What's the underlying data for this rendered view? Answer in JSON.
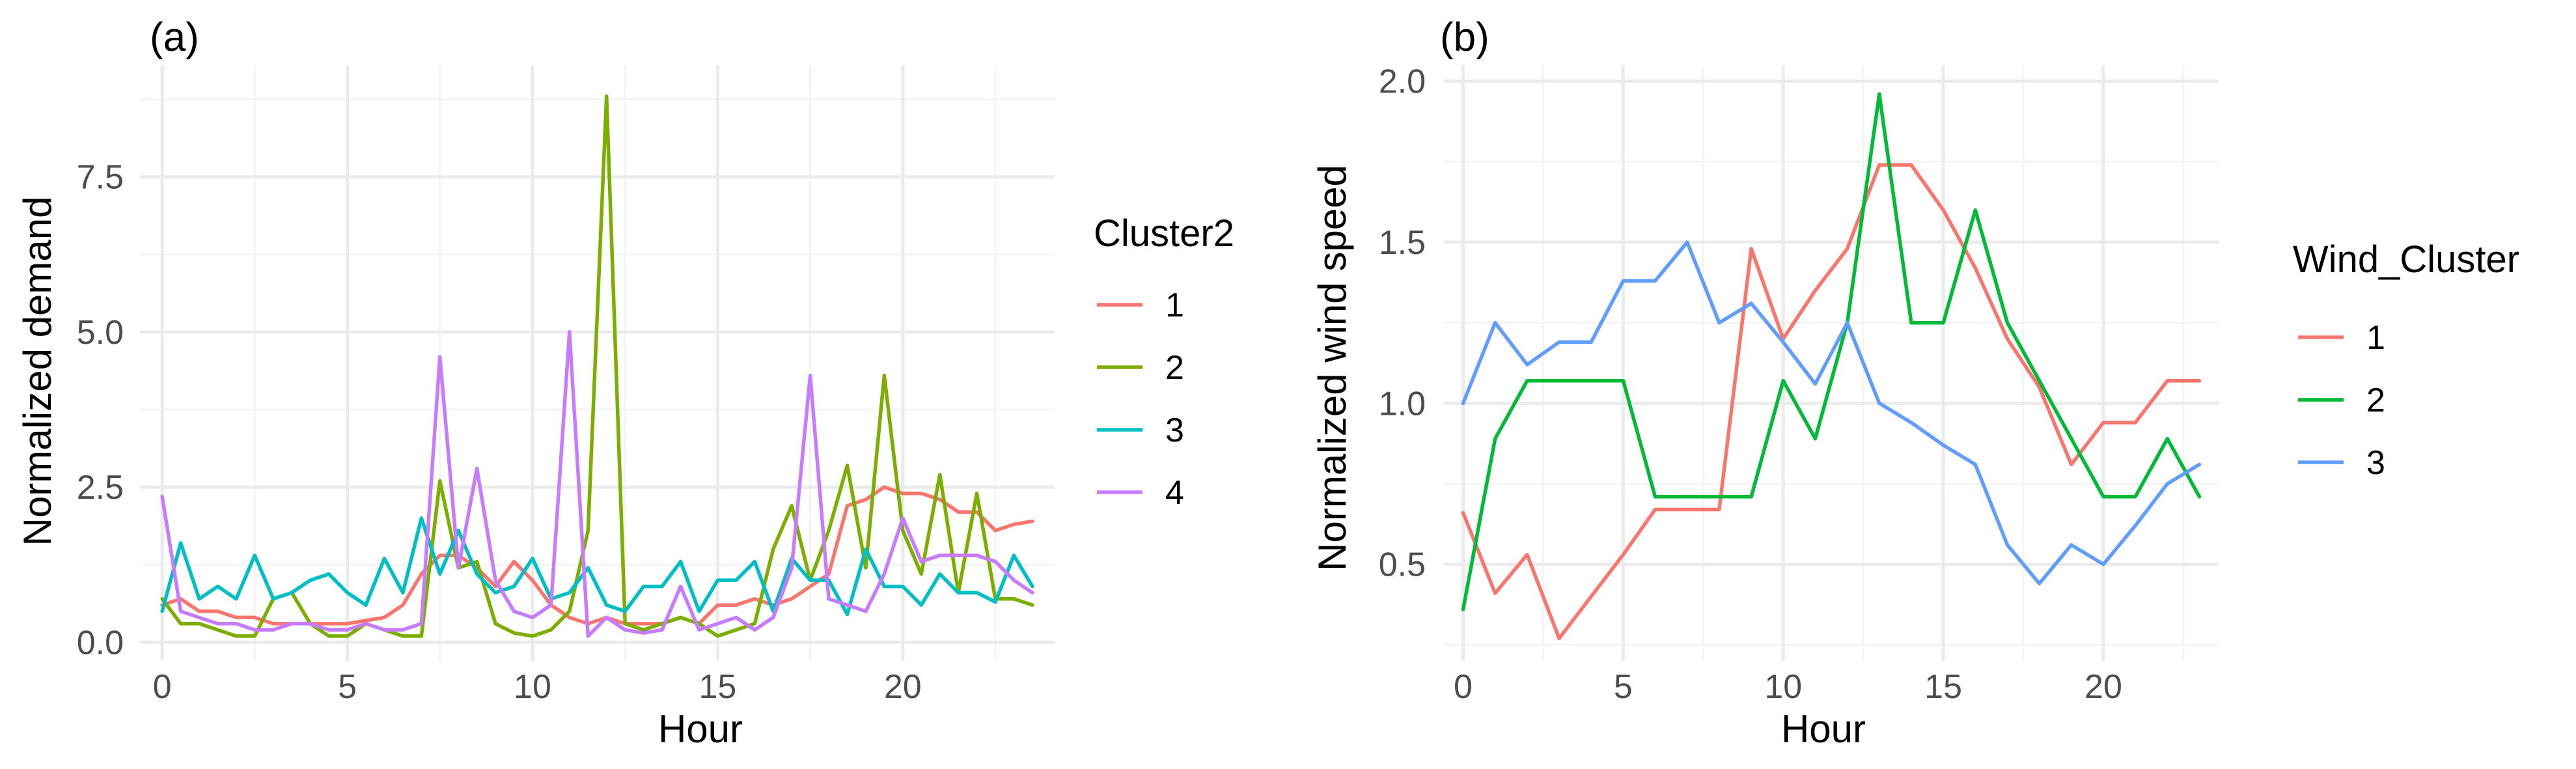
{
  "chart_data": [
    {
      "type": "line",
      "panel_label": "(a)",
      "xlabel": "Hour",
      "ylabel": "Normalized demand",
      "xlim": [
        -0.6,
        24.1
      ],
      "ylim": [
        -0.3,
        9.3
      ],
      "x_ticks": [
        0,
        5,
        10,
        15,
        20
      ],
      "x_tick_labels": [
        "0",
        "5",
        "10",
        "15",
        "20"
      ],
      "y_ticks": [
        0,
        2.5,
        5,
        7.5
      ],
      "y_tick_labels": [
        "0.0",
        "2.5",
        "5.0",
        "7.5"
      ],
      "legend_title": "Cluster2",
      "legend_position": "right",
      "series": [
        {
          "name": "1",
          "color": "#F8766D",
          "x": [
            0,
            0.5,
            1,
            1.5,
            2,
            2.5,
            3,
            3.5,
            4,
            4.5,
            5,
            5.5,
            6,
            6.5,
            7,
            7.5,
            8,
            8.5,
            9,
            9.5,
            10,
            10.5,
            11,
            11.5,
            12,
            12.5,
            13,
            13.5,
            14,
            14.5,
            15,
            15.5,
            16,
            16.5,
            17,
            17.5,
            18,
            18.5,
            19,
            19.5,
            20,
            20.5,
            21,
            21.5,
            22,
            22.5,
            23,
            23.5
          ],
          "values": [
            0.6,
            0.7,
            0.5,
            0.5,
            0.4,
            0.4,
            0.3,
            0.3,
            0.3,
            0.3,
            0.3,
            0.35,
            0.4,
            0.6,
            1.1,
            1.4,
            1.4,
            1.2,
            0.9,
            1.3,
            1.0,
            0.6,
            0.4,
            0.3,
            0.4,
            0.3,
            0.3,
            0.3,
            0.4,
            0.3,
            0.6,
            0.6,
            0.7,
            0.6,
            0.7,
            0.9,
            1.1,
            2.2,
            2.3,
            2.5,
            2.4,
            2.4,
            2.3,
            2.1,
            2.1,
            1.8,
            1.9,
            1.95
          ]
        },
        {
          "name": "2",
          "color": "#7CAE00",
          "x": [
            0,
            0.5,
            1,
            1.5,
            2,
            2.5,
            3,
            3.5,
            4,
            4.5,
            5,
            5.5,
            6,
            6.5,
            7,
            7.5,
            8,
            8.5,
            9,
            9.5,
            10,
            10.5,
            11,
            11.5,
            12,
            12.5,
            13,
            13.5,
            14,
            14.5,
            15,
            15.5,
            16,
            16.5,
            17,
            17.5,
            18,
            18.5,
            19,
            19.5,
            20,
            20.5,
            21,
            21.5,
            22,
            22.5,
            23,
            23.5
          ],
          "values": [
            0.7,
            0.3,
            0.3,
            0.2,
            0.1,
            0.1,
            0.7,
            0.8,
            0.3,
            0.1,
            0.1,
            0.3,
            0.2,
            0.1,
            0.1,
            2.6,
            1.2,
            1.3,
            0.3,
            0.15,
            0.1,
            0.2,
            0.5,
            1.8,
            8.8,
            0.3,
            0.2,
            0.3,
            0.4,
            0.3,
            0.1,
            0.2,
            0.3,
            1.5,
            2.2,
            1.0,
            1.8,
            2.85,
            1.2,
            4.3,
            1.8,
            1.1,
            2.7,
            0.8,
            2.4,
            0.7,
            0.7,
            0.6
          ]
        },
        {
          "name": "3",
          "color": "#00BFC4",
          "x": [
            0,
            0.5,
            1,
            1.5,
            2,
            2.5,
            3,
            3.5,
            4,
            4.5,
            5,
            5.5,
            6,
            6.5,
            7,
            7.5,
            8,
            8.5,
            9,
            9.5,
            10,
            10.5,
            11,
            11.5,
            12,
            12.5,
            13,
            13.5,
            14,
            14.5,
            15,
            15.5,
            16,
            16.5,
            17,
            17.5,
            18,
            18.5,
            19,
            19.5,
            20,
            20.5,
            21,
            21.5,
            22,
            22.5,
            23,
            23.5
          ],
          "values": [
            0.5,
            1.6,
            0.7,
            0.9,
            0.7,
            1.4,
            0.7,
            0.8,
            1.0,
            1.1,
            0.8,
            0.6,
            1.35,
            0.8,
            2.0,
            1.1,
            1.8,
            1.1,
            0.8,
            0.9,
            1.35,
            0.7,
            0.8,
            1.2,
            0.6,
            0.5,
            0.9,
            0.9,
            1.3,
            0.5,
            1.0,
            1.0,
            1.3,
            0.5,
            1.35,
            1.0,
            1.0,
            0.45,
            1.5,
            0.9,
            0.9,
            0.6,
            1.1,
            0.8,
            0.8,
            0.65,
            1.4,
            0.9
          ]
        },
        {
          "name": "4",
          "color": "#C77CFF",
          "x": [
            0,
            0.5,
            1,
            1.5,
            2,
            2.5,
            3,
            3.5,
            4,
            4.5,
            5,
            5.5,
            6,
            6.5,
            7,
            7.5,
            8,
            8.5,
            9,
            9.5,
            10,
            10.5,
            11,
            11.5,
            12,
            12.5,
            13,
            13.5,
            14,
            14.5,
            15,
            15.5,
            16,
            16.5,
            17,
            17.5,
            18,
            18.5,
            19,
            19.5,
            20,
            20.5,
            21,
            21.5,
            22,
            22.5,
            23,
            23.5
          ],
          "values": [
            2.35,
            0.5,
            0.4,
            0.3,
            0.3,
            0.2,
            0.2,
            0.3,
            0.3,
            0.2,
            0.2,
            0.3,
            0.2,
            0.2,
            0.3,
            4.6,
            1.2,
            2.8,
            1.0,
            0.5,
            0.4,
            0.6,
            5.0,
            0.1,
            0.4,
            0.2,
            0.15,
            0.2,
            0.9,
            0.2,
            0.3,
            0.4,
            0.2,
            0.4,
            1.2,
            4.3,
            0.7,
            0.6,
            0.5,
            1.1,
            2.0,
            1.3,
            1.4,
            1.4,
            1.4,
            1.3,
            1.0,
            0.8
          ]
        }
      ]
    },
    {
      "type": "line",
      "panel_label": "(b)",
      "xlabel": "Hour",
      "ylabel": "Normalized wind speed",
      "xlim": [
        -0.6,
        23.6
      ],
      "ylim": [
        0.2,
        2.05
      ],
      "x_ticks": [
        0,
        5,
        10,
        15,
        20
      ],
      "x_tick_labels": [
        "0",
        "5",
        "10",
        "15",
        "20"
      ],
      "y_ticks": [
        0.5,
        1.0,
        1.5,
        2.0
      ],
      "y_tick_labels": [
        "0.5",
        "1.0",
        "1.5",
        "2.0"
      ],
      "legend_title": "Wind_Cluster",
      "legend_position": "right",
      "series": [
        {
          "name": "1",
          "color": "#F8766D",
          "x": [
            0,
            1,
            2,
            3,
            4,
            5,
            6,
            7,
            8,
            9,
            10,
            11,
            12,
            13,
            14,
            15,
            16,
            17,
            18,
            19,
            20,
            21,
            22,
            23
          ],
          "values": [
            0.66,
            0.41,
            0.53,
            0.27,
            0.4,
            0.53,
            0.67,
            0.67,
            0.67,
            1.48,
            1.2,
            1.35,
            1.48,
            1.74,
            1.74,
            1.6,
            1.42,
            1.2,
            1.05,
            0.81,
            0.94,
            0.94,
            1.07,
            1.07
          ]
        },
        {
          "name": "2",
          "color": "#00BA38",
          "x": [
            0,
            1,
            2,
            3,
            4,
            5,
            6,
            7,
            8,
            9,
            10,
            11,
            12,
            13,
            14,
            15,
            16,
            17,
            18,
            19,
            20,
            21,
            22,
            23
          ],
          "values": [
            0.36,
            0.89,
            1.07,
            1.07,
            1.07,
            1.07,
            0.71,
            0.71,
            0.71,
            0.71,
            1.07,
            0.89,
            1.25,
            1.96,
            1.25,
            1.25,
            1.6,
            1.25,
            1.07,
            0.89,
            0.71,
            0.71,
            0.89,
            0.71
          ]
        },
        {
          "name": "3",
          "color": "#619CFF",
          "x": [
            0,
            1,
            2,
            3,
            4,
            5,
            6,
            7,
            8,
            9,
            10,
            11,
            12,
            13,
            14,
            15,
            16,
            17,
            18,
            19,
            20,
            21,
            22,
            23
          ],
          "values": [
            1.0,
            1.25,
            1.12,
            1.19,
            1.19,
            1.38,
            1.38,
            1.5,
            1.25,
            1.31,
            1.19,
            1.06,
            1.25,
            1.0,
            0.94,
            0.87,
            0.81,
            0.56,
            0.44,
            0.56,
            0.5,
            0.62,
            0.75,
            0.81
          ]
        }
      ]
    }
  ]
}
